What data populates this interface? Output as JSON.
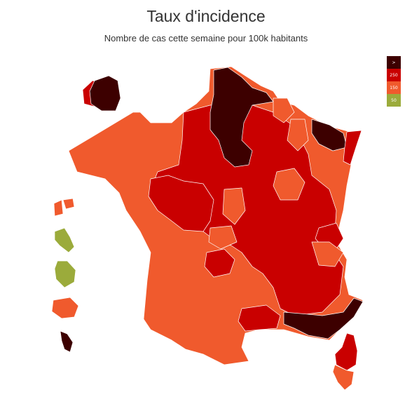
{
  "title": "Taux d'incidence",
  "subtitle": "Nombre de cas cette semaine pour 100k habitants",
  "legend": [
    {
      "label": ">",
      "color": "#3d0000"
    },
    {
      "label": "250",
      "color": "#c90000"
    },
    {
      "label": "150",
      "color": "#f05a2d"
    },
    {
      "label": "50",
      "color": "#9bab3b"
    }
  ],
  "colors": {
    "very_high": "#3d0000",
    "high": "#c90000",
    "medium": "#f05a2d",
    "low": "#9bab3b",
    "border": "#ffffff"
  }
}
